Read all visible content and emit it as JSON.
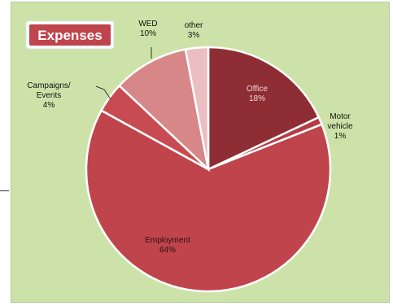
{
  "chart_data": {
    "type": "pie",
    "title": "Expenses",
    "start_angle_deg": 0,
    "direction": "clockwise",
    "slices": [
      {
        "label": "Office",
        "value": 18,
        "percent_label": "18%",
        "color": "#8e2d33",
        "text_color": "#f4d6d6"
      },
      {
        "label": "Motor vehicle",
        "value": 1,
        "percent_label": "1%",
        "color": "#b53c45",
        "text_color": "#111111"
      },
      {
        "label": "Employment",
        "value": 64,
        "percent_label": "64%",
        "color": "#c0444c",
        "text_color": "#2a1010"
      },
      {
        "label": "Campaigns/ Events",
        "value": 4,
        "percent_label": "4%",
        "color": "#c94b52",
        "text_color": "#111111"
      },
      {
        "label": "WED",
        "value": 10,
        "percent_label": "10%",
        "color": "#d88789",
        "text_color": "#111111"
      },
      {
        "label": "other",
        "value": 3,
        "percent_label": "3%",
        "color": "#ebbfc2",
        "text_color": "#111111"
      }
    ]
  },
  "colors": {
    "background": "#cde2a8",
    "title_bg": "#c0444c",
    "title_text": "#ffffff",
    "slice_border": "#ffffff"
  }
}
